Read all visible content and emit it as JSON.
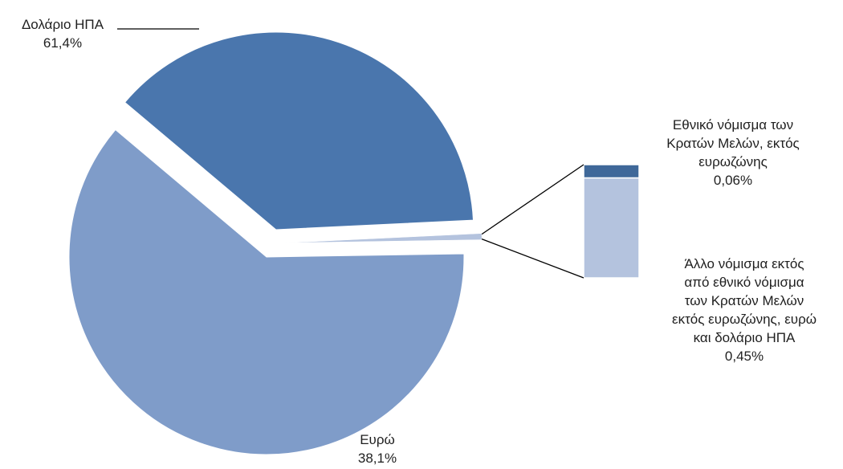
{
  "chart_data": {
    "type": "pie",
    "subtype": "bar-of-pie",
    "slices": [
      {
        "name": "Δολάριο ΗΠΑ",
        "value": 61.4,
        "value_label": "61,4%",
        "color": "#7f9cc9"
      },
      {
        "name": "Ευρώ",
        "value": 38.1,
        "value_label": "38,1%",
        "color": "#4a76ad"
      },
      {
        "name": "Άλλο",
        "value": 0.51,
        "value_label": "",
        "color": "#b4c3de"
      }
    ],
    "secondary_bar": [
      {
        "name_lines": [
          "Εθνικό νόμισμα των",
          "Κρατών Μελών,  εκτός",
          "ευρωζώνης"
        ],
        "value": 0.06,
        "value_label": "0,06%",
        "color": "#3f6899"
      },
      {
        "name_lines": [
          "Άλλο νόμισμα εκτός",
          "από εθνικό νόμισμα",
          "των Κρατών Μελών",
          "εκτός ευρωζώνης, ευρώ",
          "και δολάριο ΗΠΑ"
        ],
        "value": 0.45,
        "value_label": "0,45%",
        "color": "#b4c3de"
      }
    ],
    "legend": "none"
  }
}
